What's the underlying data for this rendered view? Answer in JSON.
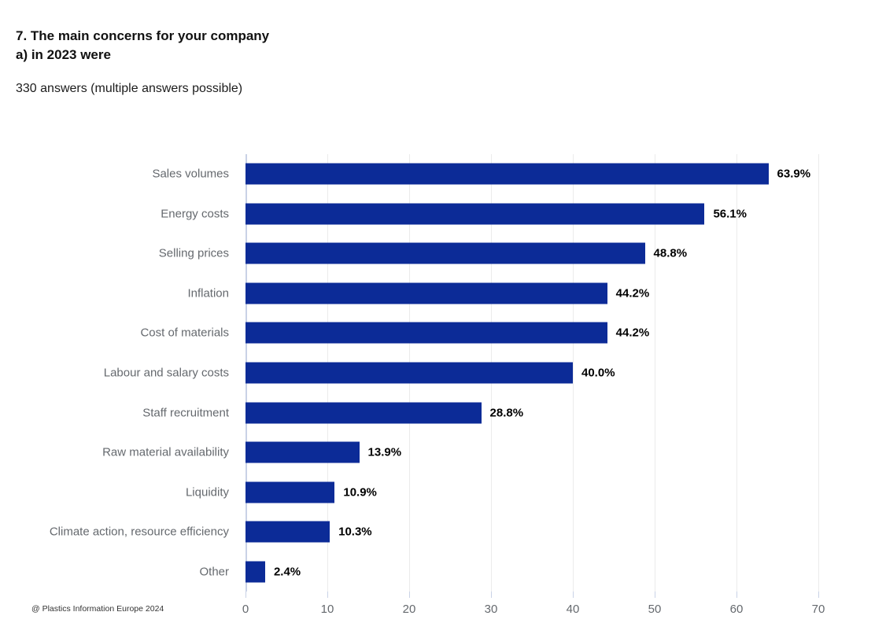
{
  "header": {
    "title_line1": "7. The main concerns for your company",
    "title_line2": "a) in 2023 were",
    "subtitle": "330 answers (multiple answers possible)"
  },
  "chart_data": {
    "type": "bar",
    "orientation": "horizontal",
    "title": "7. The main concerns for your company a) in 2023 were",
    "subtitle": "330 answers (multiple answers possible)",
    "categories": [
      "Sales volumes",
      "Energy costs",
      "Selling prices",
      "Inflation",
      "Cost of materials",
      "Labour and salary costs",
      "Staff recruitment",
      "Raw material availability",
      "Liquidity",
      "Climate action, resource efficiency",
      "Other"
    ],
    "values": [
      63.9,
      56.1,
      48.8,
      44.2,
      44.2,
      40.0,
      28.8,
      13.9,
      10.9,
      10.3,
      2.4
    ],
    "value_suffix": "%",
    "xlabel": "",
    "ylabel": "",
    "xlim": [
      0,
      70
    ],
    "x_ticks": [
      0,
      10,
      20,
      30,
      40,
      50,
      60,
      70
    ],
    "grid": true,
    "legend": false,
    "bar_color": "#0c2b97",
    "category_label_color": "#65696e",
    "value_label_color": "#000000"
  },
  "footer": {
    "copyright": "@ Plastics Information Europe 2024"
  }
}
